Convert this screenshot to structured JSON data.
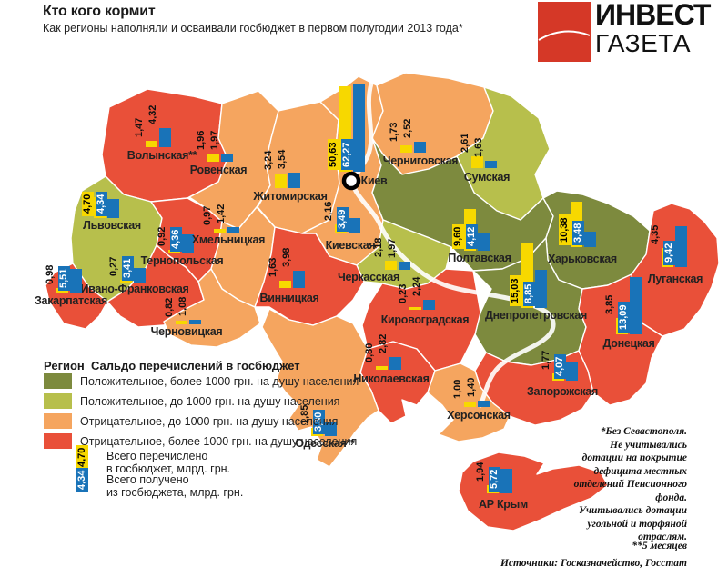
{
  "header": {
    "title": "Кто кого кормит",
    "subtitle": "Как регионы наполняли и осваивали госбюджет в первом полугодии 2013 года*"
  },
  "logo": {
    "line1": "ИНВЕСТ",
    "line2": "ГАЗЕТА",
    "brand_red": "#d53827"
  },
  "colors": {
    "positive_high": "#7d8a3e",
    "positive_low": "#b7bf4c",
    "negative_low": "#f5a55f",
    "negative_high": "#e95039",
    "paid_bar": "#f7d800",
    "received_bar": "#1973b8"
  },
  "legend": {
    "head_col1": "Регион",
    "head_col2": "Сальдо перечислений в госбюджет",
    "items": [
      {
        "color_key": "positive_high",
        "label": "Положительное, более 1000 грн. на душу населения"
      },
      {
        "color_key": "positive_low",
        "label": "Положительное, до 1000 грн. на душу населения"
      },
      {
        "color_key": "negative_low",
        "label": "Отрицательное, до 1000 грн. на душу населения"
      },
      {
        "color_key": "negative_high",
        "label": "Отрицательное, более 1000 грн. на душу населения"
      }
    ],
    "paid_sample": {
      "value": "4,70",
      "label": "Всего перечислено\nв госбюджет, млрд. грн."
    },
    "received_sample": {
      "value": "4,34",
      "label": "Всего получено\nиз госбюджета, млрд. грн."
    }
  },
  "map": {
    "capital_label": "Киев",
    "regions": [
      {
        "name": "Волынская**",
        "paid": "1,47",
        "received": "4,32",
        "category": "negative_high"
      },
      {
        "name": "Ровенская",
        "paid": "1,96",
        "received": "1,97",
        "category": "negative_low"
      },
      {
        "name": "Львовская",
        "paid": "4,70",
        "received": "4,34",
        "category": "positive_low"
      },
      {
        "name": "Тернопольская",
        "paid": "0,92",
        "received": "4,36",
        "category": "negative_high"
      },
      {
        "name": "Хмельницкая",
        "paid": "0,97",
        "received": "1,42",
        "category": "negative_low"
      },
      {
        "name": "Житомирская",
        "paid": "3,24",
        "received": "3,54",
        "category": "negative_low"
      },
      {
        "name": "Киев",
        "paid": "50,63",
        "received": "62,27",
        "category": "city"
      },
      {
        "name": "Черниговская",
        "paid": "1,73",
        "received": "2,52",
        "category": "negative_low"
      },
      {
        "name": "Сумская",
        "paid": "2,61",
        "received": "1,63",
        "category": "positive_low"
      },
      {
        "name": "Киевская",
        "paid": "2,16",
        "received": "3,49",
        "category": "negative_low"
      },
      {
        "name": "Черкасская",
        "paid": "2,18",
        "received": "1,97",
        "category": "positive_low"
      },
      {
        "name": "Полтавская",
        "paid": "9,60",
        "received": "4,12",
        "category": "positive_high"
      },
      {
        "name": "Харьковская",
        "paid": "10,38",
        "received": "3,48",
        "category": "positive_high"
      },
      {
        "name": "Луганская",
        "paid": "4,35",
        "received": "9,42",
        "category": "negative_high"
      },
      {
        "name": "Донецкая",
        "paid": "3,85",
        "received": "13,09",
        "category": "negative_high"
      },
      {
        "name": "Днепропетровская",
        "paid": "15,03",
        "received": "8,85",
        "category": "positive_high"
      },
      {
        "name": "Запорожская",
        "paid": "1,77",
        "received": "4,07",
        "category": "negative_high"
      },
      {
        "name": "Херсонская",
        "paid": "1,00",
        "received": "1,40",
        "category": "negative_low"
      },
      {
        "name": "Николаевская",
        "paid": "0,80",
        "received": "2,82",
        "category": "negative_high"
      },
      {
        "name": "Одесская**",
        "paid": "1,85",
        "received": "3,30",
        "category": "negative_low"
      },
      {
        "name": "Кировоградская",
        "paid": "0,23",
        "received": "2,24",
        "category": "negative_high"
      },
      {
        "name": "Винницкая",
        "paid": "1,63",
        "received": "3,98",
        "category": "negative_high"
      },
      {
        "name": "Черновицкая",
        "paid": "0,82",
        "received": "1,08",
        "category": "negative_low"
      },
      {
        "name": "Ивано-Франковская",
        "paid": "0,27",
        "received": "3,41",
        "category": "negative_high"
      },
      {
        "name": "Закарпатская",
        "paid": "0,98",
        "received": "5,51",
        "category": "negative_high"
      },
      {
        "name": "АР Крым",
        "paid": "1,94",
        "received": "5,72",
        "category": "negative_high"
      }
    ]
  },
  "footnotes": {
    "note1": "*Без Севастополя.\nНе учитывались\nдотации на покрытие\nдефицита местных\nотделений Пенсионного\nфонда.\nУчитывались дотации\nугольной и торфяной\nотраслям.",
    "note2": "**5 месяцев",
    "sources": "Источники: Госказначейство, Госстат"
  },
  "chart_data": {
    "type": "bar",
    "title": "Кто кого кормит",
    "subtitle": "Как регионы наполняли и осваивали госбюджет в первом полугодии 2013 года*",
    "unit": "млрд грн.",
    "layout_hint": "choropleth map of Ukraine with paired bars per region; yellow=paid to state budget, blue=received from state budget",
    "categories": [
      "Волынская",
      "Ровенская",
      "Львовская",
      "Тернопольская",
      "Хмельницкая",
      "Житомирская",
      "Киев",
      "Черниговская",
      "Сумская",
      "Киевская",
      "Черкасская",
      "Полтавская",
      "Харьковская",
      "Луганская",
      "Донецкая",
      "Днепропетровская",
      "Запорожская",
      "Херсонская",
      "Николаевская",
      "Одесская",
      "Кировоградская",
      "Винницкая",
      "Черновицкая",
      "Ивано-Франковская",
      "Закарпатская",
      "АР Крым"
    ],
    "series": [
      {
        "name": "Всего перечислено в госбюджет",
        "values": [
          1.47,
          1.96,
          4.7,
          0.92,
          0.97,
          3.24,
          50.63,
          1.73,
          2.61,
          2.16,
          2.18,
          9.6,
          10.38,
          4.35,
          3.85,
          15.03,
          1.77,
          1.0,
          0.8,
          1.85,
          0.23,
          1.63,
          0.82,
          0.27,
          0.98,
          1.94
        ]
      },
      {
        "name": "Всего получено из госбюджета",
        "values": [
          4.32,
          1.97,
          4.34,
          4.36,
          1.42,
          3.54,
          62.27,
          2.52,
          1.63,
          3.49,
          1.97,
          4.12,
          3.48,
          9.42,
          13.09,
          8.85,
          4.07,
          1.4,
          2.82,
          3.3,
          2.24,
          3.98,
          1.08,
          3.41,
          5.51,
          5.72
        ]
      }
    ],
    "balance_category": [
      "negative_high",
      "negative_low",
      "positive_low",
      "negative_high",
      "negative_low",
      "negative_low",
      "city",
      "negative_low",
      "positive_low",
      "negative_low",
      "positive_low",
      "positive_high",
      "positive_high",
      "negative_high",
      "negative_high",
      "positive_high",
      "negative_high",
      "negative_low",
      "negative_high",
      "negative_low",
      "negative_high",
      "negative_high",
      "negative_low",
      "negative_high",
      "negative_high",
      "negative_high"
    ]
  }
}
